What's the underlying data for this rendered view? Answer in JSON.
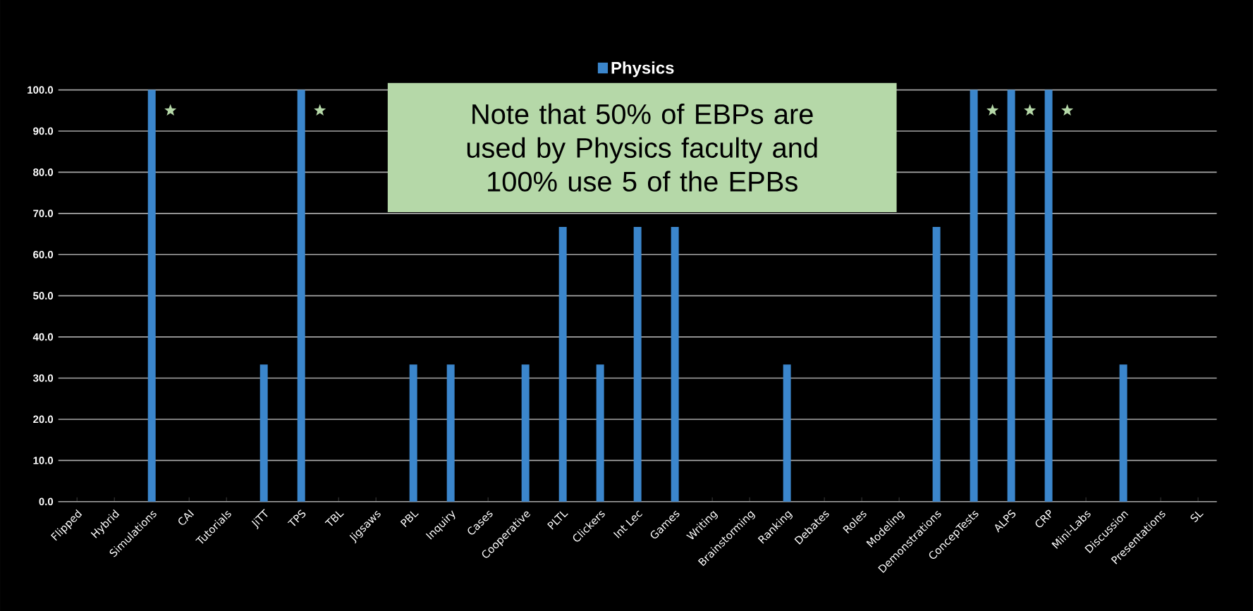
{
  "chart_data": {
    "type": "bar",
    "categories": [
      "Flipped",
      "Hybrid",
      "Simulations",
      "CAI",
      "Tutorials",
      "JiTT",
      "TPS",
      "TBL",
      "Jigsaws",
      "PBL",
      "Inquiry",
      "Cases",
      "Cooperative",
      "PLTL",
      "Clickers",
      "Int Lec",
      "Games",
      "Writing",
      "Brainstorming",
      "Ranking",
      "Debates",
      "Roles",
      "Modeling",
      "Demonstrations",
      "ConcepTests",
      "ALPS",
      "CRP",
      "Mini-Labs",
      "Discussion",
      "Presentations",
      "SL"
    ],
    "series": [
      {
        "name": "Physics",
        "color": "#3b86cc",
        "values": [
          0,
          0,
          100,
          0,
          0,
          33.3,
          100,
          0,
          0,
          33.3,
          33.3,
          0,
          33.3,
          66.7,
          33.3,
          66.7,
          66.7,
          0,
          0,
          33.3,
          0,
          0,
          0,
          66.7,
          100,
          100,
          100,
          0,
          33.3,
          0,
          0
        ]
      }
    ],
    "ylim": [
      0,
      100
    ],
    "yticks": [
      {
        "value": 0,
        "label": "0.0"
      },
      {
        "value": 10,
        "label": "10.0"
      },
      {
        "value": 20,
        "label": "20.0"
      },
      {
        "value": 30,
        "label": "30.0"
      },
      {
        "value": 40,
        "label": "40.0"
      },
      {
        "value": 50,
        "label": "50.0"
      },
      {
        "value": 60,
        "label": "60.0"
      },
      {
        "value": 70,
        "label": "70.0"
      },
      {
        "value": 80,
        "label": "80.0"
      },
      {
        "value": 90,
        "label": "90.0"
      },
      {
        "value": 100,
        "label": "100.0"
      }
    ],
    "grid": "y",
    "legend": "top",
    "annotations": [
      "Note that 50% of EBPs are used by Physics faculty and 100% use 5 of the EPBs"
    ]
  }
}
